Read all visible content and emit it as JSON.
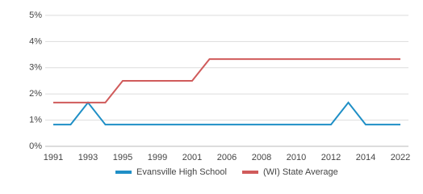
{
  "chart_data": {
    "type": "line",
    "categories": [
      "1991",
      null,
      "1993",
      null,
      "1995",
      null,
      "1999",
      null,
      "2001",
      null,
      "2006",
      null,
      "2008",
      null,
      "2010",
      null,
      "2012",
      null,
      "2014",
      null,
      "2022"
    ],
    "series": [
      {
        "name": "Evansville High School",
        "color": "#1f8fc6",
        "values": [
          0.83,
          0.83,
          1.67,
          0.83,
          0.83,
          0.83,
          0.83,
          0.83,
          0.83,
          0.83,
          0.83,
          0.83,
          0.83,
          0.83,
          0.83,
          0.83,
          0.83,
          1.67,
          0.83,
          0.83,
          0.83
        ]
      },
      {
        "name": "(WI) State Average",
        "color": "#d05b5b",
        "values": [
          1.67,
          1.67,
          1.67,
          1.67,
          2.5,
          2.5,
          2.5,
          2.5,
          2.5,
          3.33,
          3.33,
          3.33,
          3.33,
          3.33,
          3.33,
          3.33,
          3.33,
          3.33,
          3.33,
          3.33,
          3.33
        ]
      }
    ],
    "ylim": [
      0,
      5
    ],
    "yticks": [
      {
        "value": 0,
        "label": "0%"
      },
      {
        "value": 1,
        "label": "1%"
      },
      {
        "value": 2,
        "label": "2%"
      },
      {
        "value": 3,
        "label": "3%"
      },
      {
        "value": 4,
        "label": "4%"
      },
      {
        "value": 5,
        "label": "5%"
      }
    ],
    "grid": true
  }
}
